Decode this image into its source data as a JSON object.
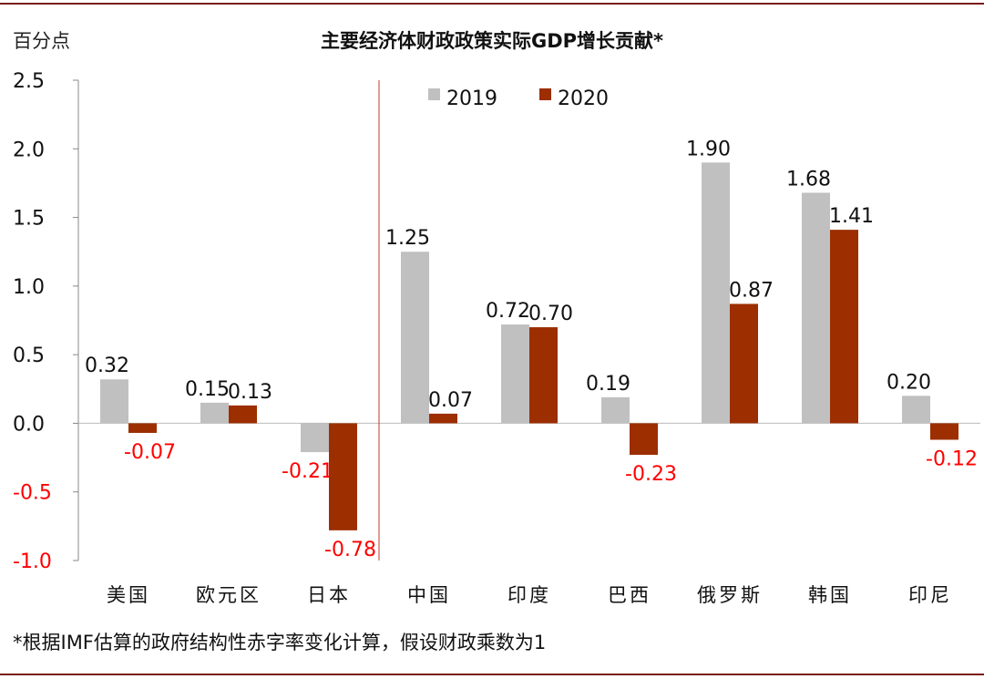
{
  "chart_data": {
    "type": "bar",
    "title": "主要经济体财政政策实际GDP增长贡献*",
    "ylabel": "百分点",
    "footnote": "*根据IMF估算的政府结构性赤字率变化计算，假设财政乘数为1",
    "categories": [
      "美国",
      "欧元区",
      "日本",
      "中国",
      "印度",
      "巴西",
      "俄罗斯",
      "韩国",
      "印尼"
    ],
    "series": [
      {
        "name": "2019",
        "color": "#c0c0c0",
        "values": [
          0.32,
          0.15,
          -0.21,
          1.25,
          0.72,
          0.19,
          1.9,
          1.68,
          0.2
        ]
      },
      {
        "name": "2020",
        "color": "#9c2e00",
        "values": [
          -0.07,
          0.13,
          -0.78,
          0.07,
          0.7,
          -0.23,
          0.87,
          1.41,
          -0.12
        ]
      }
    ],
    "data_labels": [
      [
        "0.32",
        "0.15",
        "-0.21",
        "1.25",
        "0.72",
        "0.19",
        "1.90",
        "1.68",
        "0.20"
      ],
      [
        "-0.07",
        "0.13",
        "-0.78",
        "0.07",
        "0.70",
        "-0.23",
        "0.87",
        "1.41",
        "-0.12"
      ]
    ],
    "ylim": [
      -1.0,
      2.5
    ],
    "yticks": [
      "2.5",
      "2.0",
      "1.5",
      "1.0",
      "0.5",
      "0.0",
      "-0.5",
      "-1.0"
    ],
    "grid": false,
    "legend_position": "top-center",
    "negative_label_color": "#ff0000",
    "divider_after_category": "日本",
    "divider_color": "#c0392b"
  }
}
